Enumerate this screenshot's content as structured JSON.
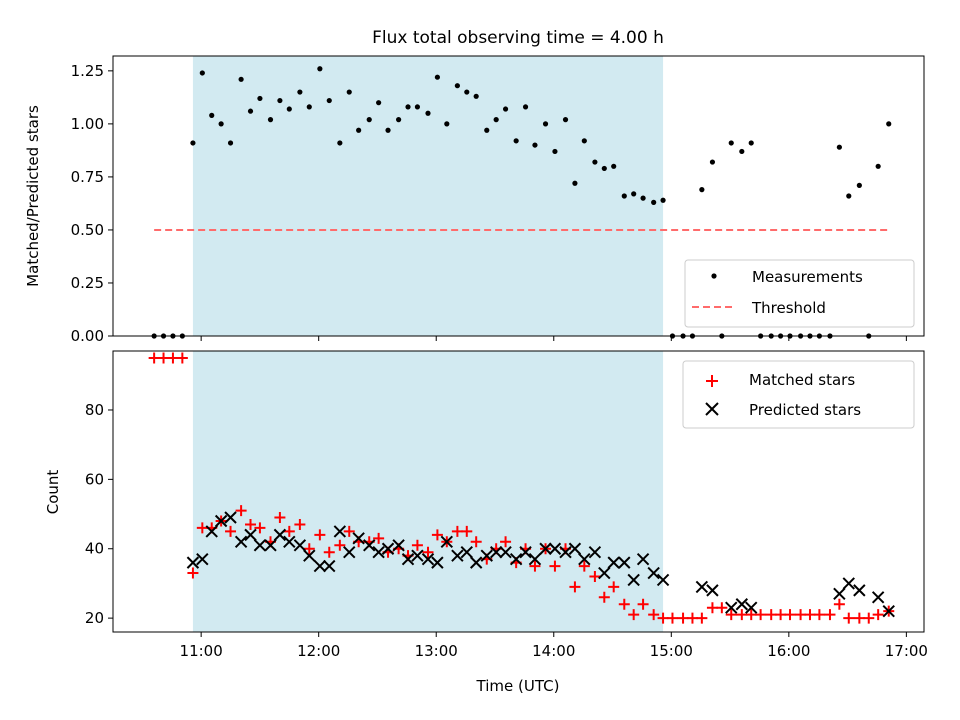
{
  "chart_data": [
    {
      "type": "scatter",
      "title": "Flux total observing time = 4.00 h",
      "xlabel": "",
      "ylabel": "Matched/Predicted stars",
      "ylim": [
        0,
        1.32
      ],
      "yticks": [
        "0.00",
        "0.25",
        "0.50",
        "0.75",
        "1.00",
        "1.25"
      ],
      "ytick_values": [
        0,
        0.25,
        0.5,
        0.75,
        1.0,
        1.25
      ],
      "xlim_hours": [
        10.25,
        17.15
      ],
      "grid": false,
      "legend_position": "lower-right",
      "shaded_span_hours": [
        10.93,
        14.93
      ],
      "shade_color": "#add8e6",
      "threshold": {
        "name": "Threshold",
        "value": 0.5,
        "x_start": 10.6,
        "x_end": 16.85,
        "color": "#ff6b6b"
      },
      "series": [
        {
          "name": "Measurements",
          "color": "#000000",
          "x": [
            10.6,
            10.68,
            10.76,
            10.84,
            10.93,
            11.01,
            11.09,
            11.17,
            11.25,
            11.34,
            11.42,
            11.5,
            11.59,
            11.67,
            11.75,
            11.84,
            11.92,
            12.01,
            12.09,
            12.18,
            12.26,
            12.34,
            12.43,
            12.51,
            12.59,
            12.68,
            12.76,
            12.84,
            12.93,
            13.01,
            13.09,
            13.18,
            13.26,
            13.34,
            13.43,
            13.51,
            13.59,
            13.68,
            13.76,
            13.84,
            13.93,
            14.01,
            14.1,
            14.18,
            14.26,
            14.35,
            14.43,
            14.51,
            14.6,
            14.68,
            14.76,
            14.85,
            14.93,
            15.01,
            15.1,
            15.18,
            15.26,
            15.35,
            15.43,
            15.51,
            15.6,
            15.68,
            15.76,
            15.85,
            15.93,
            16.01,
            16.1,
            16.18,
            16.26,
            16.35,
            16.43,
            16.51,
            16.6,
            16.68,
            16.76,
            16.85
          ],
          "y": [
            0,
            0,
            0,
            0,
            0.91,
            1.24,
            1.04,
            1.0,
            0.91,
            1.21,
            1.06,
            1.12,
            1.02,
            1.11,
            1.07,
            1.15,
            1.08,
            1.26,
            1.11,
            0.91,
            1.15,
            0.97,
            1.02,
            1.1,
            0.97,
            1.02,
            1.08,
            1.08,
            1.05,
            1.22,
            1.0,
            1.18,
            1.15,
            1.13,
            0.97,
            1.02,
            1.07,
            0.92,
            1.08,
            0.9,
            1.0,
            0.87,
            1.02,
            0.72,
            0.92,
            0.82,
            0.79,
            0.8,
            0.66,
            0.67,
            0.65,
            0.63,
            0.64,
            0,
            0,
            0,
            0.69,
            0.82,
            0,
            0.91,
            0.87,
            0.91,
            0,
            0,
            0,
            0,
            0,
            0,
            0,
            0,
            0.89,
            0.66,
            0.71,
            0,
            0.8,
            1.0
          ]
        }
      ]
    },
    {
      "type": "scatter",
      "title": "",
      "xlabel": "Time (UTC)",
      "ylabel": "Count",
      "ylim": [
        16,
        97
      ],
      "yticks": [
        "20",
        "40",
        "60",
        "80"
      ],
      "ytick_values": [
        20,
        40,
        60,
        80
      ],
      "xlim_hours": [
        10.25,
        17.15
      ],
      "xticks": [
        "11:00",
        "12:00",
        "13:00",
        "14:00",
        "15:00",
        "16:00",
        "17:00"
      ],
      "xtick_values": [
        11,
        12,
        13,
        14,
        15,
        16,
        17
      ],
      "grid": false,
      "legend_position": "upper-right",
      "shaded_span_hours": [
        10.93,
        14.93
      ],
      "shade_color": "#add8e6",
      "series": [
        {
          "name": "Matched stars",
          "color": "#ff0000",
          "marker": "plus",
          "x": [
            10.6,
            10.68,
            10.76,
            10.84,
            10.93,
            11.01,
            11.09,
            11.17,
            11.25,
            11.34,
            11.42,
            11.5,
            11.59,
            11.67,
            11.75,
            11.84,
            11.92,
            12.01,
            12.09,
            12.18,
            12.26,
            12.34,
            12.43,
            12.51,
            12.59,
            12.68,
            12.76,
            12.84,
            12.93,
            13.01,
            13.09,
            13.18,
            13.26,
            13.34,
            13.43,
            13.51,
            13.59,
            13.68,
            13.76,
            13.84,
            13.93,
            14.01,
            14.1,
            14.18,
            14.26,
            14.35,
            14.43,
            14.51,
            14.6,
            14.68,
            14.76,
            14.85,
            14.93,
            15.01,
            15.1,
            15.18,
            15.26,
            15.35,
            15.43,
            15.51,
            15.6,
            15.68,
            15.76,
            15.85,
            15.93,
            16.01,
            16.1,
            16.18,
            16.26,
            16.35,
            16.43,
            16.51,
            16.6,
            16.68,
            16.76,
            16.85
          ],
          "y": [
            95,
            95,
            95,
            95,
            33,
            46,
            46,
            48,
            45,
            51,
            47,
            46,
            42,
            49,
            45,
            47,
            40,
            44,
            39,
            41,
            45,
            42,
            42,
            43,
            39,
            40,
            38,
            41,
            39,
            44,
            42,
            45,
            45,
            42,
            37,
            40,
            42,
            36,
            40,
            35,
            40,
            35,
            40,
            29,
            35,
            32,
            26,
            29,
            24,
            21,
            24,
            21,
            20,
            20,
            20,
            20,
            20,
            23,
            23,
            21,
            21,
            21,
            21,
            21,
            21,
            21,
            21,
            21,
            21,
            21,
            24,
            20,
            20,
            20,
            21,
            22
          ]
        },
        {
          "name": "Predicted stars",
          "color": "#000000",
          "marker": "cross",
          "x": [
            10.93,
            11.01,
            11.09,
            11.17,
            11.25,
            11.34,
            11.42,
            11.5,
            11.59,
            11.67,
            11.75,
            11.84,
            11.92,
            12.01,
            12.09,
            12.18,
            12.26,
            12.34,
            12.43,
            12.51,
            12.59,
            12.68,
            12.76,
            12.84,
            12.93,
            13.01,
            13.09,
            13.18,
            13.26,
            13.34,
            13.43,
            13.51,
            13.59,
            13.68,
            13.76,
            13.84,
            13.93,
            14.01,
            14.1,
            14.18,
            14.26,
            14.35,
            14.43,
            14.51,
            14.6,
            14.68,
            14.76,
            14.85,
            14.93,
            15.26,
            15.35,
            15.51,
            15.6,
            15.68,
            16.43,
            16.51,
            16.6,
            16.76,
            16.85
          ],
          "y": [
            36,
            37,
            45,
            48,
            49,
            42,
            44,
            41,
            41,
            44,
            42,
            41,
            38,
            35,
            35,
            45,
            39,
            43,
            41,
            39,
            40,
            41,
            37,
            38,
            37,
            36,
            42,
            38,
            39,
            36,
            38,
            39,
            39,
            37,
            39,
            37,
            40,
            40,
            39,
            40,
            37,
            39,
            33,
            36,
            36,
            31,
            37,
            33,
            31,
            29,
            28,
            23,
            24,
            23,
            27,
            30,
            28,
            26,
            22
          ]
        }
      ]
    }
  ]
}
